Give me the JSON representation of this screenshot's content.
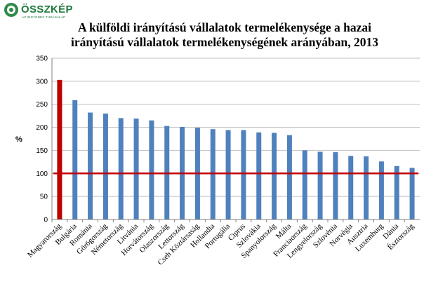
{
  "logo": {
    "name": "ÖSSZKÉP",
    "tagline": "AZ INGYENES TUDÁSALAP"
  },
  "colors": {
    "bar": "#4f81bd",
    "highlight": "#c00000",
    "reference_line": "#c00000",
    "gridline": "#bfbfbf"
  },
  "chart_data": {
    "type": "bar",
    "title_line1": "A külföldi irányítású vállalatok termelékenysége a hazai",
    "title_line2": "irányítású vállalatok termelékenységének arányában, 2013",
    "ylabel": "%",
    "xlabel": "",
    "ylim": [
      0,
      350
    ],
    "yticks": [
      0,
      50,
      100,
      150,
      200,
      250,
      300,
      350
    ],
    "grid": "horizontal",
    "reference_value": 100,
    "highlight_category": "Magyarország",
    "categories": [
      "Magyarország",
      "Bulgária",
      "Románia",
      "Görögország",
      "Németország",
      "Litvánia",
      "Horvátország",
      "Olaszország",
      "Lettország",
      "Cseh Köztársaság",
      "Hollandia",
      "Portugália",
      "Ciprus",
      "Szlovákia",
      "Spanyolország",
      "Málta",
      "Franciaország",
      "Lengyelország",
      "Szlovénia",
      "Norvégia",
      "Ausztria",
      "Luxemburg",
      "Dánia",
      "Észtország"
    ],
    "values": [
      303,
      259,
      232,
      230,
      220,
      219,
      215,
      203,
      201,
      199,
      196,
      194,
      194,
      189,
      188,
      183,
      150,
      147,
      146,
      138,
      137,
      126,
      116,
      112
    ]
  }
}
